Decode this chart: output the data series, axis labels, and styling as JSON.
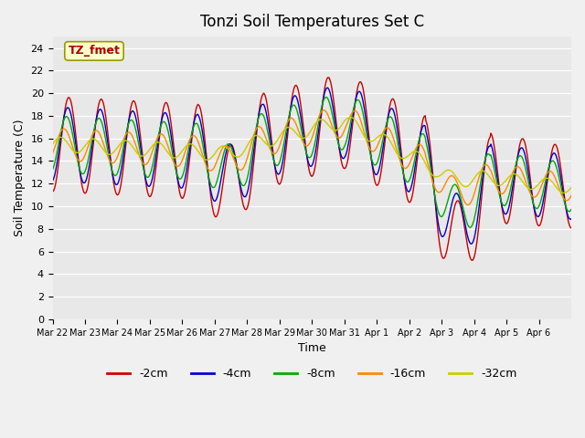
{
  "title": "Tonzi Soil Temperatures Set C",
  "xlabel": "Time",
  "ylabel": "Soil Temperature (C)",
  "annotation": "TZ_fmet",
  "ylim": [
    0,
    25
  ],
  "yticks": [
    0,
    2,
    4,
    6,
    8,
    10,
    12,
    14,
    16,
    18,
    20,
    22,
    24
  ],
  "legend": [
    "-2cm",
    "-4cm",
    "-8cm",
    "-16cm",
    "-32cm"
  ],
  "colors": [
    "#cc0000",
    "#0000cc",
    "#00aa00",
    "#ff8800",
    "#cccc00"
  ],
  "bg_color": "#e8e8e8",
  "fig_color": "#f0f0f0",
  "annotation_box_color": "#ffffcc",
  "annotation_text_color": "#aa0000",
  "annotation_edge_color": "#999900",
  "n_days": 16
}
